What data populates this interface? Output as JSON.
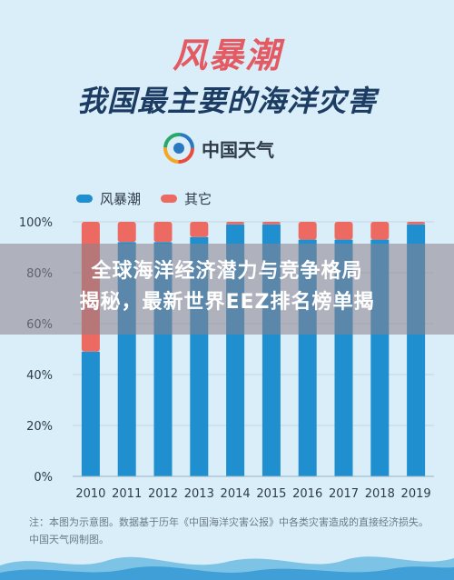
{
  "header": {
    "title": "风暴潮",
    "subtitle": "我国最主要的海洋灾害",
    "brand": "中国天气"
  },
  "overlay": {
    "line1": "全球海洋经济潜力与竞争格局",
    "line2": "揭秘，最新世界EEZ排名榜单揭"
  },
  "note": {
    "text": "注：本图为示意图。数据基于历年《中国海洋灾害公报》中各类灾害造成的直接经济损失。中国天气网制图。"
  },
  "colors": {
    "storm_surge": "#1f8fd0",
    "other": "#ec6a62",
    "title": "#e45a63",
    "subtitle": "#1c3c63"
  },
  "chart_data": {
    "type": "bar",
    "stacked": true,
    "categories": [
      "2010",
      "2011",
      "2012",
      "2013",
      "2014",
      "2015",
      "2016",
      "2017",
      "2018",
      "2019"
    ],
    "series": [
      {
        "name": "风暴潮",
        "values": [
          49,
          92,
          92,
          94,
          99,
          99,
          93,
          93,
          93,
          99
        ]
      },
      {
        "name": "其它",
        "values": [
          51,
          8,
          8,
          6,
          1,
          1,
          7,
          7,
          7,
          1
        ]
      }
    ],
    "yticks": [
      "0%",
      "20%",
      "40%",
      "60%",
      "80%",
      "100%"
    ],
    "ylim": [
      0,
      100
    ],
    "legend": "top-left",
    "grid": true
  }
}
